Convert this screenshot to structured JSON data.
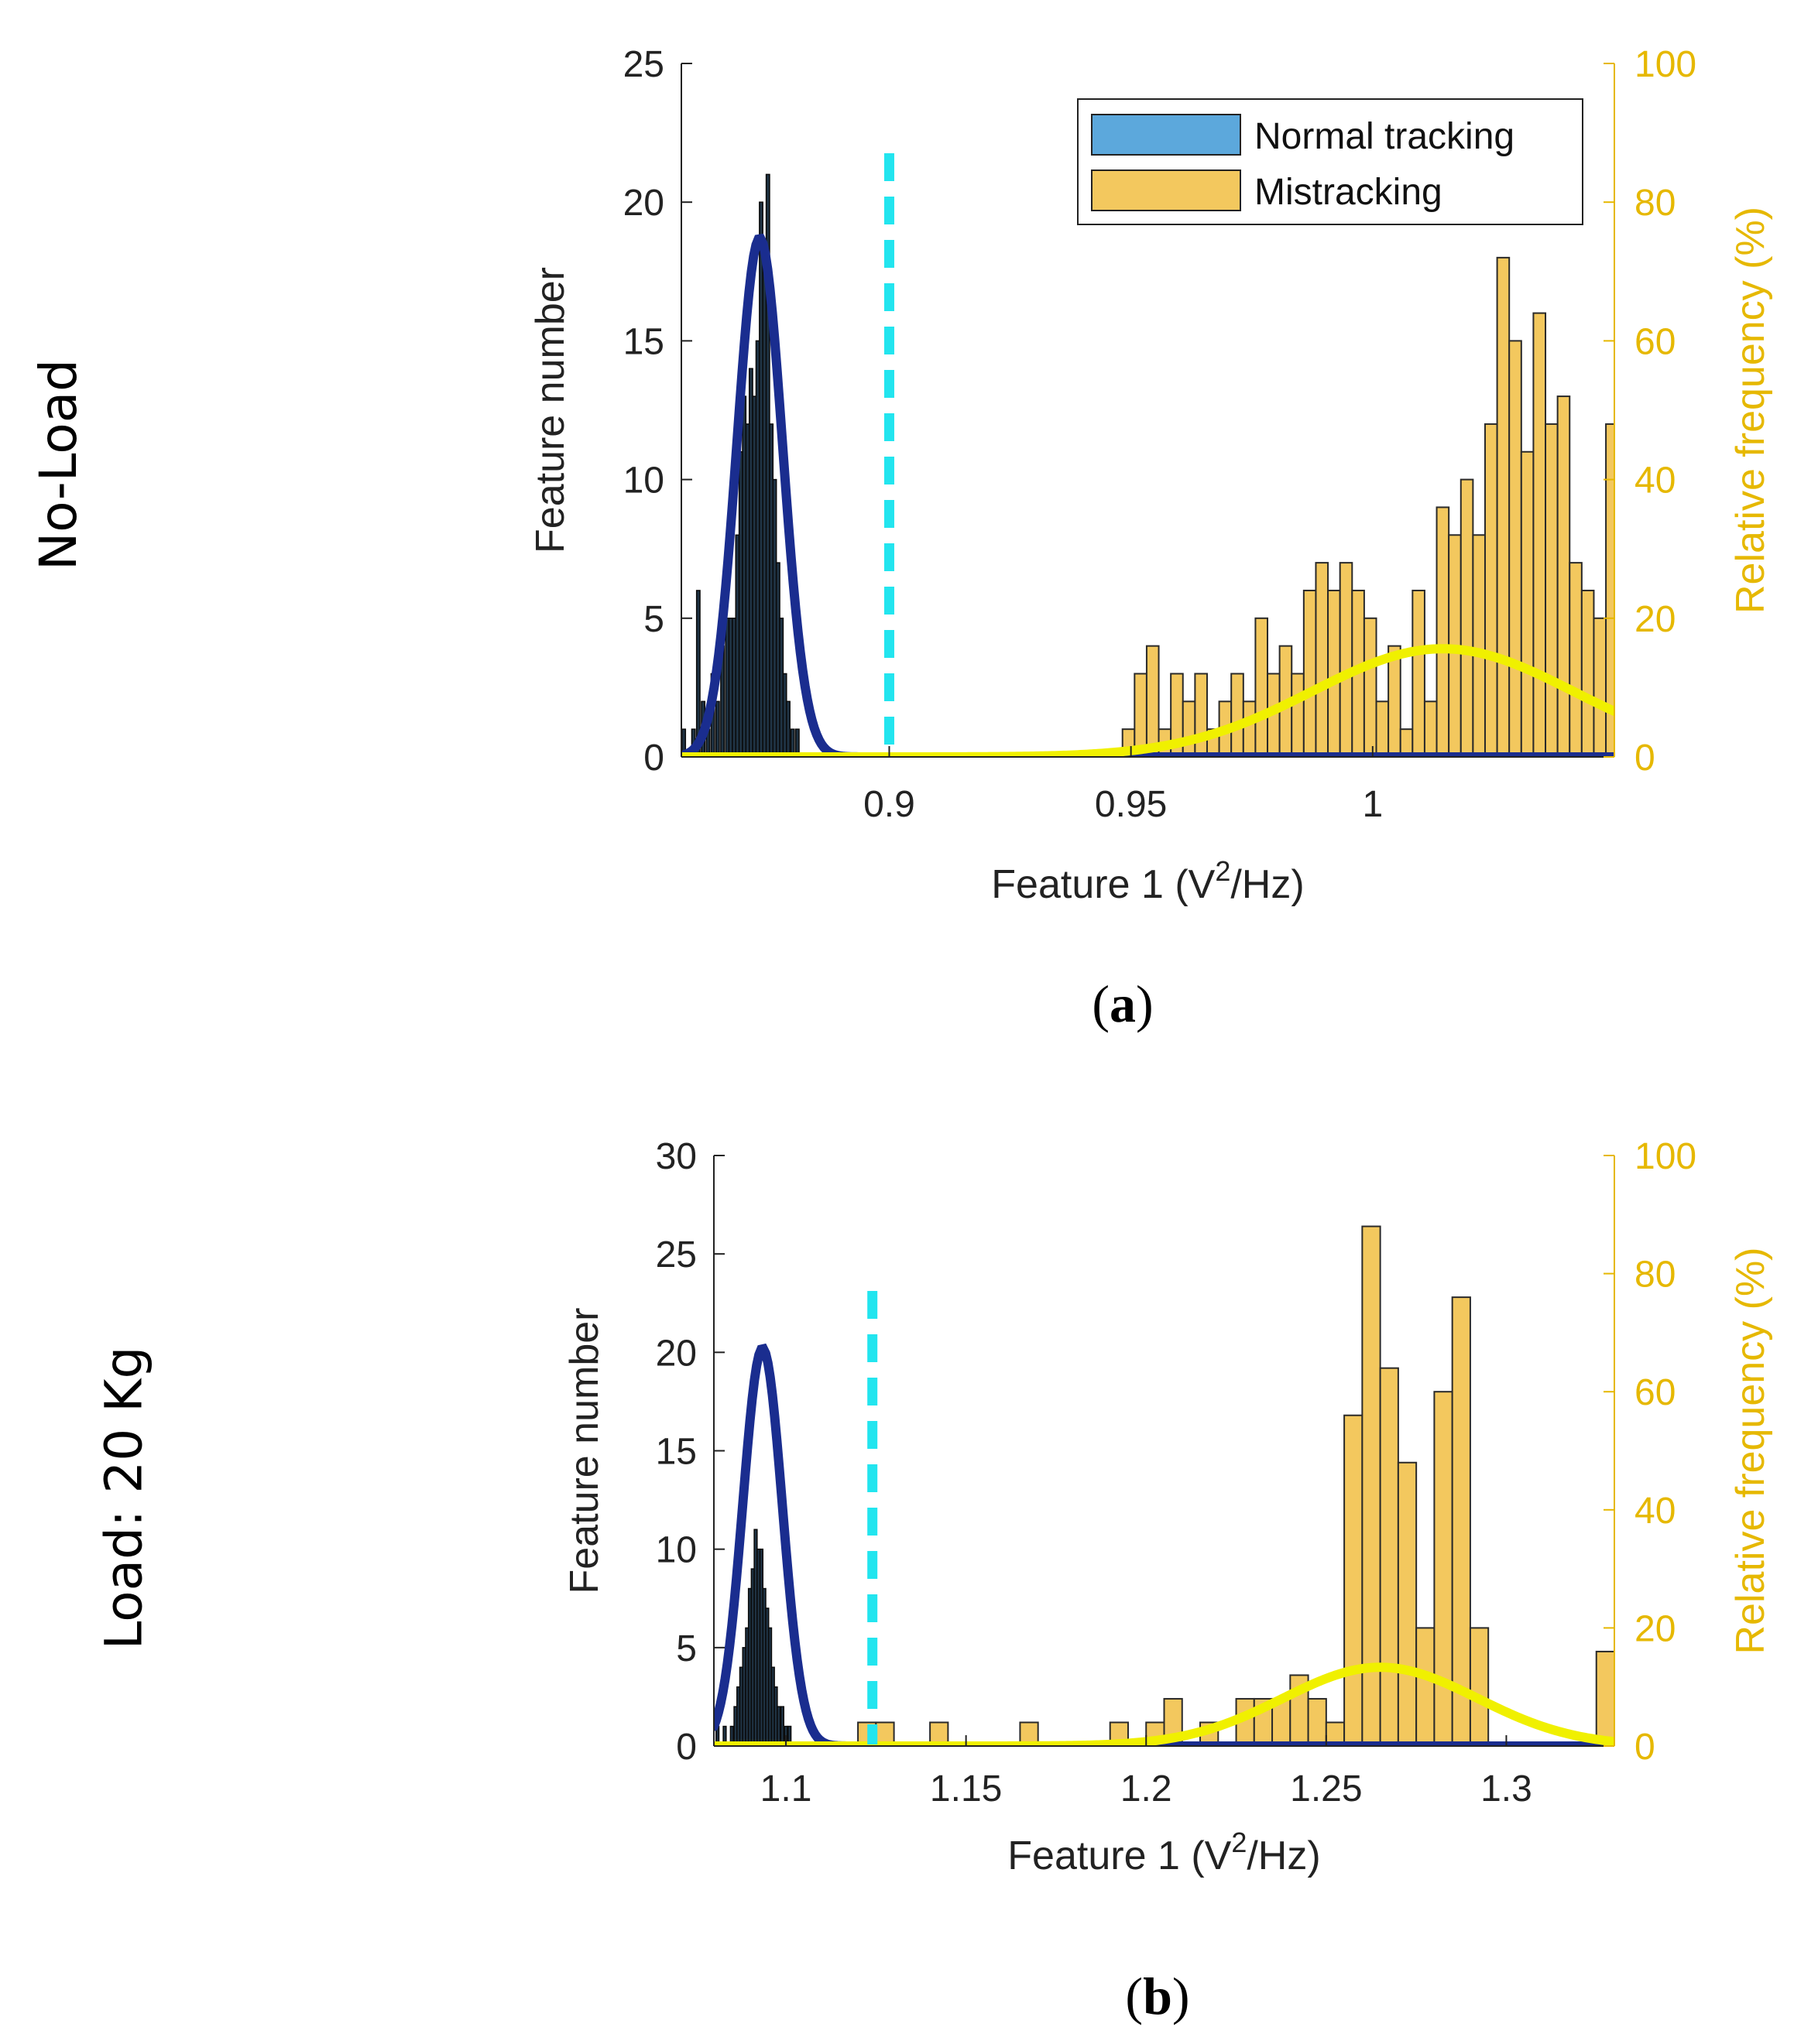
{
  "row_labels": {
    "a": "No-Load",
    "b": "Load: 20 Kg"
  },
  "captions": {
    "a": "a",
    "b": "b"
  },
  "colors": {
    "normal_bar": "#1F3344",
    "mistrack_bar": "#F3C85E",
    "bar_edge": "#2a2a2a",
    "normal_fit": "#1A2D8F",
    "mistrack_fit": "#F0F000",
    "threshold": "#22E5EF",
    "right_axis": "#E6B800",
    "legend_normal": "#5CA8DC"
  },
  "chart_data": [
    {
      "type": "bar",
      "title": "",
      "xlabel": "Feature 1 (V²/Hz)",
      "ylabel": "Feature number",
      "ylabel_right": "Relative frequency (%)",
      "xlim": [
        0.857,
        1.05
      ],
      "ylim": [
        0,
        25
      ],
      "ylim_right": [
        0,
        100
      ],
      "xticks": [
        "0.9",
        "0.95",
        "1"
      ],
      "yticks": [
        "0",
        "5",
        "10",
        "15",
        "20",
        "25"
      ],
      "yticks_right": [
        "0",
        "20",
        "40",
        "60",
        "80",
        "100"
      ],
      "legend": [
        "Normal tracking",
        "Mistracking"
      ],
      "legend_position": "top-right",
      "threshold_x": 0.9,
      "series": [
        {
          "name": "Normal tracking",
          "bin_width": 0.0007,
          "x": [
            0.8575,
            0.8585,
            0.8595,
            0.8605,
            0.8615,
            0.8625,
            0.8635,
            0.8645,
            0.8655,
            0.8665,
            0.8672,
            0.8679,
            0.8686,
            0.8693,
            0.87,
            0.8707,
            0.8714,
            0.8721,
            0.8728,
            0.8735,
            0.8742,
            0.8749,
            0.8756,
            0.8763,
            0.877,
            0.8777,
            0.8784,
            0.8791,
            0.88,
            0.881
          ],
          "values": [
            1,
            0,
            1,
            6,
            2,
            1,
            3,
            2,
            4,
            5,
            5,
            5,
            8,
            11,
            13,
            12,
            14,
            13,
            15,
            20,
            18,
            21,
            12,
            10,
            7,
            5,
            3,
            2,
            1,
            1
          ]
        },
        {
          "name": "Mistracking",
          "bin_width": 0.0025,
          "x": [
            0.9495,
            0.952,
            0.9545,
            0.957,
            0.9595,
            0.962,
            0.9645,
            0.967,
            0.9695,
            0.972,
            0.9745,
            0.977,
            0.9795,
            0.982,
            0.9845,
            0.987,
            0.9895,
            0.992,
            0.9945,
            0.997,
            0.9995,
            1.002,
            1.0045,
            1.007,
            1.0095,
            1.012,
            1.0145,
            1.017,
            1.0195,
            1.022,
            1.0245,
            1.027,
            1.0295,
            1.032,
            1.0345,
            1.037,
            1.0395,
            1.042,
            1.0445,
            1.047,
            1.0495
          ],
          "values": [
            4,
            12,
            16,
            4,
            12,
            8,
            12,
            4,
            8,
            12,
            8,
            20,
            12,
            16,
            12,
            24,
            28,
            24,
            28,
            24,
            20,
            8,
            16,
            4,
            24,
            8,
            36,
            32,
            40,
            32,
            48,
            72,
            60,
            44,
            64,
            48,
            52,
            28,
            24,
            20,
            48
          ]
        }
      ],
      "fits": [
        {
          "name": "Normal tracking fit",
          "mean": 0.8732,
          "sd": 0.0047,
          "peak": 18.7
        },
        {
          "name": "Mistracking fit",
          "mean": 1.0145,
          "sd": 0.027,
          "peak": 3.9
        }
      ]
    },
    {
      "type": "bar",
      "title": "",
      "xlabel": "Feature 1 (V²/Hz)",
      "ylabel": "Feature number",
      "ylabel_right": "Relative frequency (%)",
      "xlim": [
        1.08,
        1.33
      ],
      "ylim": [
        0,
        30
      ],
      "ylim_right": [
        0,
        100
      ],
      "xticks": [
        "1.1",
        "1.15",
        "1.2",
        "1.25",
        "1.3"
      ],
      "yticks": [
        "0",
        "5",
        "10",
        "15",
        "20",
        "25",
        "30"
      ],
      "yticks_right": [
        "0",
        "20",
        "40",
        "60",
        "80",
        "100"
      ],
      "legend": [],
      "legend_position": "none",
      "threshold_x": 1.124,
      "series": [
        {
          "name": "Normal tracking",
          "bin_width": 0.0008,
          "x": [
            1.081,
            1.083,
            1.085,
            1.086,
            1.0868,
            1.0876,
            1.0884,
            1.0892,
            1.09,
            1.0908,
            1.0916,
            1.0924,
            1.0932,
            1.094,
            1.0948,
            1.0956,
            1.0964,
            1.0972,
            1.098,
            1.099,
            1.1,
            1.101
          ],
          "values": [
            1,
            1,
            1,
            2,
            3,
            4,
            5,
            6,
            8,
            9,
            11,
            10,
            10,
            8,
            7,
            6,
            4,
            3,
            2,
            2,
            1,
            1
          ]
        },
        {
          "name": "Mistracking",
          "bin_width": 0.005,
          "x": [
            1.1225,
            1.1275,
            1.1425,
            1.1675,
            1.1925,
            1.2025,
            1.2075,
            1.2175,
            1.2275,
            1.2325,
            1.2375,
            1.2425,
            1.2475,
            1.2525,
            1.2575,
            1.2625,
            1.2675,
            1.2725,
            1.2775,
            1.2825,
            1.2875,
            1.2925,
            1.3275
          ],
          "values": [
            4,
            4,
            4,
            4,
            4,
            4,
            8,
            4,
            8,
            8,
            8,
            12,
            8,
            4,
            56,
            88,
            64,
            48,
            20,
            60,
            76,
            20,
            16
          ],
          "note": "values in percent of relative frequency axis (right axis)"
        }
      ],
      "fits": [
        {
          "name": "Normal tracking fit",
          "mean": 1.0935,
          "sd": 0.0055,
          "peak": 20.2
        },
        {
          "name": "Mistracking fit",
          "mean": 1.265,
          "sd": 0.027,
          "peak": 4.0
        }
      ]
    }
  ]
}
